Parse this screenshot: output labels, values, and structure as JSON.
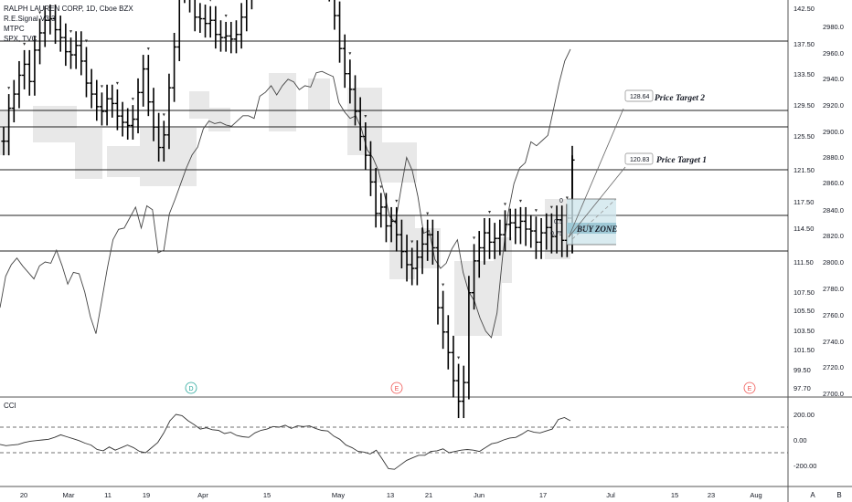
{
  "legend": {
    "title": "RALPH LAUREN CORP, 1D, Cboe BZX",
    "indicators": [
      "R.E.Signal V3.3",
      "MTPC",
      "SPX, TVC"
    ]
  },
  "cci_label": "CCI",
  "annotations": {
    "target1": {
      "label": "Price Target 1",
      "price": "120.83"
    },
    "target2": {
      "label": "Price Target 2",
      "price": "128.64"
    },
    "buy_zone": "BUY ZONE",
    "fib": [
      "0",
      "0.5",
      "0.75"
    ]
  },
  "event_markers": [
    "D",
    "E",
    "E"
  ],
  "bottom_buttons": [
    "A",
    "B"
  ],
  "colors": {
    "candle": "#000000",
    "spx_line": "#444444",
    "shade": "#e3e3e3",
    "buy_zone": "#a8cfd9",
    "dashed": "#444444",
    "event_d": "#26a69a",
    "event_e": "#ef5350"
  },
  "chart_data": {
    "type": "bar",
    "title": "RALPH LAUREN CORP, 1D, Cboe BZX",
    "x_ticks": [
      "20",
      "Mar",
      "11",
      "19",
      "Apr",
      "15",
      "May",
      "13",
      "21",
      "Jun",
      "17",
      "Jul",
      "15",
      "23",
      "Aug"
    ],
    "y_right_price": [
      "142.50",
      "137.50",
      "133.50",
      "129.50",
      "125.50",
      "121.50",
      "117.50",
      "114.50",
      "111.50",
      "107.50",
      "105.50",
      "103.50",
      "101.50",
      "99.50",
      "97.70"
    ],
    "y_right_spx": [
      "2980.0",
      "2960.0",
      "2940.0",
      "2920.0",
      "2900.0",
      "2880.0",
      "2860.0",
      "2840.0",
      "2820.0",
      "2800.0",
      "2780.0",
      "2760.0",
      "2740.0",
      "2720.0",
      "2700.0"
    ],
    "price_levels": [
      137.3,
      128.6,
      125.2,
      120.8,
      115.4,
      111.6
    ],
    "price_series": [
      119.2,
      121.3,
      122.2,
      123.4,
      124.1,
      123.0,
      125.0,
      126.1,
      126.9,
      127.0,
      126.3,
      125.8,
      124.9,
      124.7,
      125.3,
      124.3,
      122.9,
      122.2,
      121.4,
      121.1,
      121.9,
      121.6,
      120.8,
      120.4,
      120.2,
      120.6,
      122.3,
      123.8,
      121.7,
      120.1,
      118.8,
      119.6,
      122.6,
      125.2,
      128.9,
      129.0,
      128.3,
      127.1,
      127.0,
      126.7,
      126.9,
      126.0,
      125.8,
      125.9,
      125.7,
      126.0,
      127.1,
      128.5,
      130.9,
      131.5,
      132.1,
      132.5,
      131.9,
      131.3,
      131.5,
      131.0,
      131.2,
      131.0,
      132.4,
      131.2,
      130.5,
      130.9,
      131.5,
      129.0,
      127.2,
      125.1,
      123.5,
      122.5,
      121.1,
      119.5,
      118.3,
      116.6,
      114.6,
      115.0,
      113.8,
      114.1,
      113.3,
      112.4,
      111.7,
      111.5,
      112.1,
      112.8,
      113.3,
      112.6,
      109.4,
      108.1,
      107.0,
      105.5,
      104.4,
      105.4,
      110.2,
      111.9,
      112.6,
      113.4,
      112.9,
      113.1,
      113.3,
      113.9,
      114.0,
      113.7,
      114.1,
      113.6,
      113.5,
      112.9,
      113.4,
      113.7,
      113.2,
      114.2,
      113.0,
      114.3,
      118.0
    ],
    "spx_series": [
      2765,
      2789,
      2798,
      2803,
      2797,
      2792,
      2787,
      2797,
      2800,
      2799,
      2809,
      2797,
      2783,
      2792,
      2791,
      2777,
      2758,
      2745,
      2770,
      2795,
      2817,
      2825,
      2826,
      2834,
      2842,
      2826,
      2843,
      2840,
      2807,
      2809,
      2837,
      2848,
      2860,
      2872,
      2882,
      2888,
      2902,
      2908,
      2906,
      2907,
      2905,
      2904,
      2908,
      2912,
      2912,
      2910,
      2927,
      2930,
      2935,
      2928,
      2935,
      2940,
      2938,
      2932,
      2935,
      2934,
      2945,
      2946,
      2944,
      2942,
      2922,
      2915,
      2910,
      2912,
      2902,
      2886,
      2880,
      2870,
      2853,
      2835,
      2830,
      2856,
      2880,
      2870,
      2850,
      2822,
      2824,
      2802,
      2795,
      2799,
      2810,
      2817,
      2792,
      2777,
      2770,
      2757,
      2747,
      2742,
      2761,
      2805,
      2838,
      2860,
      2872,
      2876,
      2892,
      2889,
      2893,
      2897,
      2917,
      2937,
      2954,
      2963
    ],
    "cci_series": [
      -35,
      -45,
      -40,
      -35,
      -20,
      -10,
      -5,
      0,
      5,
      20,
      40,
      25,
      10,
      -5,
      -25,
      -40,
      -75,
      -85,
      -55,
      -80,
      -60,
      -40,
      -60,
      -90,
      -100,
      -60,
      -20,
      55,
      150,
      200,
      190,
      150,
      120,
      85,
      95,
      80,
      75,
      50,
      60,
      35,
      25,
      20,
      55,
      75,
      85,
      105,
      100,
      115,
      90,
      110,
      105,
      110,
      90,
      75,
      70,
      30,
      5,
      -40,
      -60,
      -90,
      -95,
      -110,
      -80,
      -150,
      -225,
      -230,
      -195,
      -160,
      -140,
      -120,
      -120,
      -90,
      -85,
      -70,
      -100,
      -90,
      -80,
      -75,
      -80,
      -90,
      -60,
      -30,
      -20,
      0,
      15,
      20,
      45,
      75,
      60,
      55,
      70,
      85,
      160,
      175,
      150
    ],
    "cci_ticks": [
      "200.00",
      "0.00",
      "-200.00"
    ],
    "cci_levels": [
      100,
      -100
    ],
    "ylim_price": [
      97.7,
      142.5
    ],
    "ylim_spx": [
      2700,
      2980
    ],
    "ylim_cci": [
      -250,
      250
    ],
    "grid": false
  }
}
